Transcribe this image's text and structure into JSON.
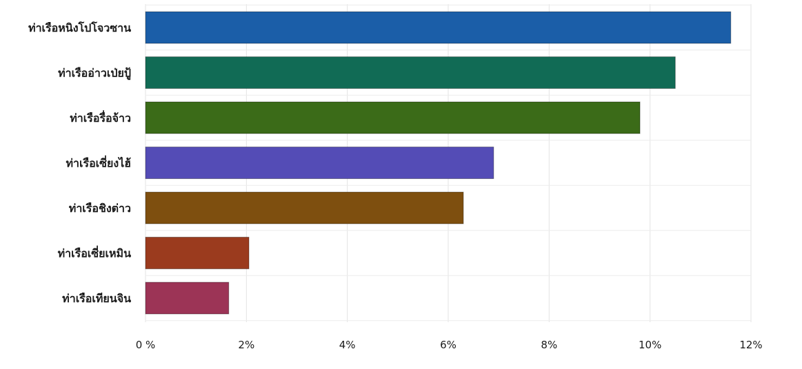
{
  "chart_data": {
    "type": "bar",
    "orientation": "horizontal",
    "title": "",
    "xlabel": "",
    "ylabel": "",
    "categories": [
      "ท่าเรือหนิงโปโจวซาน",
      "ท่าเรืออ่าวเป่ยปู้",
      "ท่าเรือรื่อจ้าว",
      "ท่าเรือเซี่ยงไฮ้",
      "ท่าเรือชิงต่าว",
      "ท่าเรือเซี่ยเหมิน",
      "ท่าเรือเทียนจิน"
    ],
    "values": [
      11.6,
      10.5,
      9.8,
      6.9,
      6.3,
      2.05,
      1.65
    ],
    "colors": [
      "#1b5ea8",
      "#116b55",
      "#3b6b18",
      "#544cb6",
      "#7e4f0f",
      "#9b3b1e",
      "#9c3456"
    ],
    "xlim": [
      0,
      12
    ],
    "xticks": [
      0,
      2,
      4,
      6,
      8,
      10,
      12
    ],
    "xtick_labels": [
      "0 %",
      "2%",
      "4%",
      "6%",
      "8%",
      "10%",
      "12%"
    ],
    "grid": true,
    "legend": "none"
  }
}
